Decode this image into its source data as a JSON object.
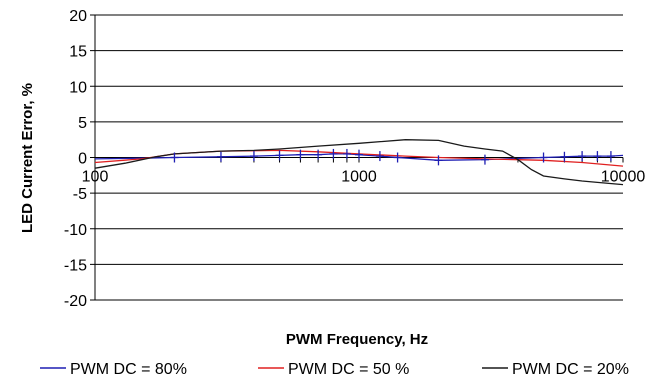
{
  "chart_data": {
    "type": "line",
    "title": "",
    "xlabel": "PWM Frequency, Hz",
    "ylabel": "LED Current Error, %",
    "x_scale": "log",
    "xlim": [
      100,
      10000
    ],
    "ylim": [
      -20,
      20
    ],
    "y_ticks": [
      20,
      15,
      10,
      5,
      0,
      -5,
      -10,
      -15,
      -20
    ],
    "y_tick_labels": [
      "20",
      "15",
      "10",
      "5",
      "0",
      "-5",
      "-10",
      "-15",
      "-20"
    ],
    "x_ticks": [
      100,
      1000,
      10000
    ],
    "x_tick_labels": [
      "100",
      "1000",
      "10000"
    ],
    "grid": "horizontal",
    "legend_position": "bottom",
    "colors": {
      "PWM DC = 80%": "#1f1fb4",
      "PWM DC = 50 %": "#e02020",
      "PWM DC = 20%": "#1a1a1a"
    },
    "series": [
      {
        "name": "PWM DC = 80%",
        "x": [
          100,
          150,
          200,
          300,
          400,
          500,
          600,
          700,
          800,
          900,
          1000,
          1200,
          1400,
          2000,
          3000,
          5000,
          6000,
          7000,
          8000,
          9000,
          10000
        ],
        "y": [
          -0.2,
          -0.1,
          0.0,
          0.1,
          0.2,
          0.3,
          0.4,
          0.4,
          0.5,
          0.5,
          0.4,
          0.2,
          0.0,
          -0.4,
          -0.3,
          0.0,
          0.1,
          0.2,
          0.2,
          0.2,
          0.3
        ],
        "markers": [
          200,
          300,
          400,
          500,
          600,
          700,
          800,
          900,
          1000,
          1200,
          1400,
          2000,
          3000,
          5000,
          6000,
          7000,
          8000,
          9000
        ]
      },
      {
        "name": "PWM DC = 50 %",
        "x": [
          100,
          150,
          200,
          300,
          500,
          700,
          1000,
          1500,
          2000,
          3000,
          5000,
          7000,
          10000
        ],
        "y": [
          -0.7,
          -0.2,
          0.5,
          0.9,
          1.0,
          0.8,
          0.5,
          0.2,
          0.0,
          -0.2,
          -0.4,
          -0.7,
          -1.2
        ]
      },
      {
        "name": "PWM DC = 20%",
        "x": [
          100,
          130,
          170,
          200,
          300,
          400,
          500,
          700,
          1000,
          1500,
          2000,
          2500,
          3000,
          3500,
          4000,
          4500,
          5000,
          6000,
          7000,
          8000,
          10000
        ],
        "y": [
          -1.5,
          -0.8,
          0.1,
          0.5,
          0.9,
          1.0,
          1.2,
          1.6,
          2.0,
          2.5,
          2.4,
          1.6,
          1.2,
          0.9,
          -0.3,
          -1.7,
          -2.6,
          -3.0,
          -3.3,
          -3.5,
          -3.8
        ]
      }
    ]
  }
}
